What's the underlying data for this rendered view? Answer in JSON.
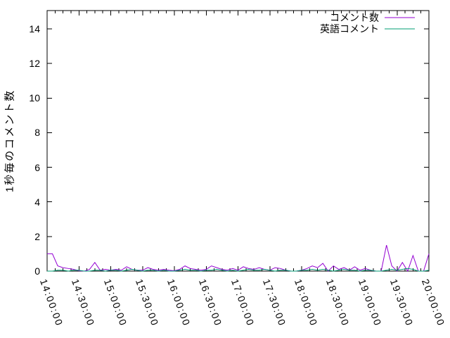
{
  "chart_data": {
    "type": "line",
    "title": "",
    "xlabel": "",
    "ylabel": "1秒毎のコメント数",
    "x_tick_labels": [
      "14:00:00",
      "14:30:00",
      "15:00:00",
      "15:30:00",
      "16:00:00",
      "16:30:00",
      "17:00:00",
      "17:30:00",
      "18:00:00",
      "18:30:00",
      "19:00:00",
      "19:30:00",
      "20:00:00"
    ],
    "y_ticks": [
      0,
      2,
      4,
      6,
      8,
      10,
      12,
      14
    ],
    "ylim": [
      0,
      15.06
    ],
    "x_range": [
      "14:00:00",
      "20:00:00"
    ],
    "sample_interval_minutes": 5,
    "x_minor_divisions": 4,
    "grid": false,
    "legend_position": "top-right-inside",
    "series": [
      {
        "name": "コメント数",
        "color": "#9400d3",
        "values": [
          1.0,
          1.0,
          0.3,
          0.2,
          0.15,
          0.1,
          0.02,
          0.0,
          0.1,
          0.5,
          0.05,
          0.1,
          0.05,
          0.1,
          0.05,
          0.25,
          0.1,
          0.05,
          0.05,
          0.2,
          0.1,
          0.05,
          0.1,
          0.05,
          0.02,
          0.1,
          0.3,
          0.15,
          0.1,
          0.05,
          0.1,
          0.3,
          0.2,
          0.1,
          0.05,
          0.15,
          0.05,
          0.25,
          0.15,
          0.1,
          0.2,
          0.1,
          0.05,
          0.2,
          0.15,
          0.05,
          0.0,
          0.0,
          0.05,
          0.15,
          0.3,
          0.2,
          0.45,
          0.0,
          0.3,
          0.1,
          0.2,
          0.05,
          0.25,
          0.05,
          0.15,
          0.05,
          0.0,
          0.0,
          1.5,
          0.3,
          0.0,
          0.5,
          0.0,
          0.9,
          0.0,
          0.0,
          1.0
        ]
      },
      {
        "name": "英語コメント",
        "color": "#009e73",
        "values": [
          0.0,
          0.0,
          0.05,
          0.05,
          0.0,
          0.05,
          0.05,
          0.0,
          0.0,
          0.05,
          0.05,
          0.0,
          0.05,
          0.05,
          0.0,
          0.05,
          0.1,
          0.05,
          0.0,
          0.05,
          0.05,
          0.0,
          0.05,
          0.0,
          0.0,
          0.05,
          0.1,
          0.05,
          0.05,
          0.0,
          0.05,
          0.05,
          0.1,
          0.05,
          0.0,
          0.05,
          0.0,
          0.05,
          0.1,
          0.05,
          0.05,
          0.1,
          0.05,
          0.0,
          0.05,
          0.05,
          0.0,
          0.0,
          0.05,
          0.05,
          0.1,
          0.05,
          0.1,
          0.05,
          0.0,
          0.05,
          0.1,
          0.05,
          0.05,
          0.0,
          0.05,
          0.05,
          0.0,
          0.0,
          0.05,
          0.1,
          0.05,
          0.1,
          0.15,
          0.1,
          0.0,
          0.0,
          0.05
        ]
      }
    ]
  },
  "colors": {
    "background": "#ffffff",
    "axis": "#000000",
    "text": "#000000"
  }
}
